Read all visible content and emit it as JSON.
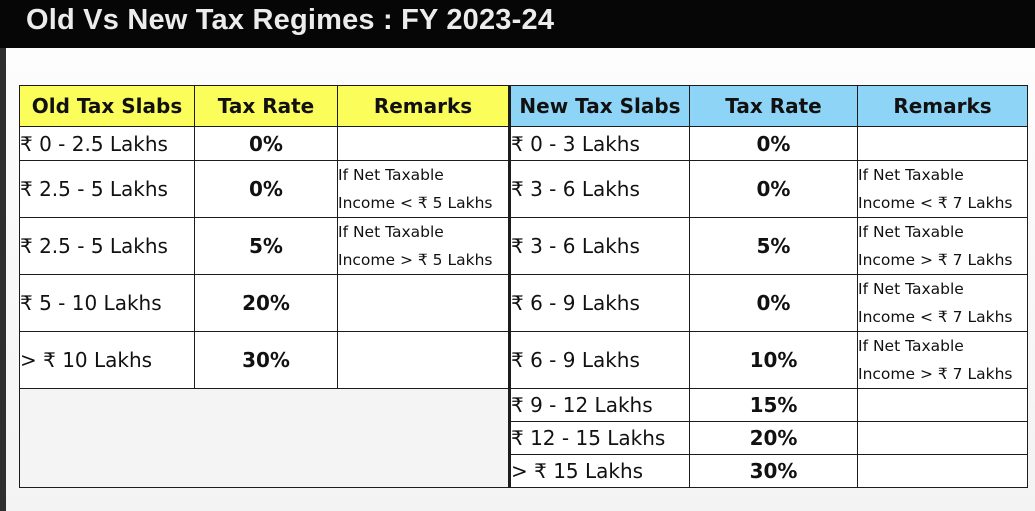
{
  "header": {
    "title": "Old Vs New Tax Regimes : FY 2023-24"
  },
  "table": {
    "old_headers": [
      "Old Tax Slabs",
      "Tax Rate",
      "Remarks"
    ],
    "new_headers": [
      "New Tax Slabs",
      "Tax Rate",
      "Remarks"
    ],
    "old_rows": [
      {
        "slab": "₹ 0 - 2.5 Lakhs",
        "rate": "0%",
        "remark": [
          "",
          ""
        ]
      },
      {
        "slab": "₹ 2.5 - 5 Lakhs",
        "rate": "0%",
        "remark": [
          "If Net Taxable",
          "Income < ₹ 5 Lakhs"
        ]
      },
      {
        "slab": "₹ 2.5 - 5 Lakhs",
        "rate": "5%",
        "remark": [
          "If Net Taxable",
          "Income > ₹ 5 Lakhs"
        ]
      },
      {
        "slab": "₹ 5 - 10 Lakhs",
        "rate": "20%",
        "remark": [
          "",
          ""
        ]
      },
      {
        "slab": "> ₹ 10 Lakhs",
        "rate": "30%",
        "remark": [
          "",
          ""
        ]
      }
    ],
    "new_rows": [
      {
        "slab": "₹ 0 - 3 Lakhs",
        "rate": "0%",
        "remark": [
          "",
          ""
        ]
      },
      {
        "slab": "₹ 3 - 6 Lakhs",
        "rate": "0%",
        "remark": [
          "If Net Taxable",
          "Income < ₹ 7 Lakhs"
        ]
      },
      {
        "slab": "₹ 3 - 6 Lakhs",
        "rate": "5%",
        "remark": [
          "If Net Taxable",
          "Income > ₹ 7 Lakhs"
        ]
      },
      {
        "slab": "₹ 6 - 9 Lakhs",
        "rate": "0%",
        "remark": [
          "If Net Taxable",
          "Income < ₹ 7 Lakhs"
        ]
      },
      {
        "slab": "₹ 6 - 9 Lakhs",
        "rate": "10%",
        "remark": [
          "If Net Taxable",
          "Income > ₹ 7 Lakhs"
        ]
      },
      {
        "slab": "₹ 9 - 12 Lakhs",
        "rate": "15%",
        "remark": [
          "",
          ""
        ]
      },
      {
        "slab": "₹ 12 - 15 Lakhs",
        "rate": "20%",
        "remark": [
          "",
          ""
        ]
      },
      {
        "slab": "> ₹ 15 Lakhs",
        "rate": "30%",
        "remark": [
          "",
          ""
        ]
      }
    ]
  },
  "colors": {
    "old_header_bg": "#fbfd5a",
    "new_header_bg": "#8ed4f6",
    "title_bar_bg": "#060606",
    "title_text": "#ececec"
  }
}
